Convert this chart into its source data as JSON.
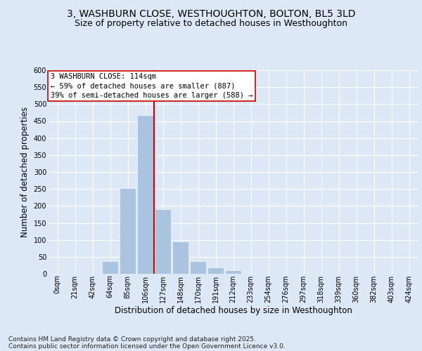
{
  "title_line1": "3, WASHBURN CLOSE, WESTHOUGHTON, BOLTON, BL5 3LD",
  "title_line2": "Size of property relative to detached houses in Westhoughton",
  "xlabel": "Distribution of detached houses by size in Westhoughton",
  "ylabel": "Number of detached properties",
  "bin_labels": [
    "0sqm",
    "21sqm",
    "42sqm",
    "64sqm",
    "85sqm",
    "106sqm",
    "127sqm",
    "148sqm",
    "170sqm",
    "191sqm",
    "212sqm",
    "233sqm",
    "254sqm",
    "276sqm",
    "297sqm",
    "318sqm",
    "339sqm",
    "360sqm",
    "382sqm",
    "403sqm",
    "424sqm"
  ],
  "bar_values": [
    2,
    0,
    0,
    37,
    253,
    467,
    190,
    95,
    37,
    18,
    10,
    3,
    0,
    0,
    0,
    0,
    0,
    0,
    0,
    2,
    0
  ],
  "bar_color": "#aac4e0",
  "bar_edgecolor": "white",
  "vline_color": "#cc0000",
  "annotation_title": "3 WASHBURN CLOSE: 114sqm",
  "annotation_line1": "← 59% of detached houses are smaller (887)",
  "annotation_line2": "39% of semi-detached houses are larger (588) →",
  "annotation_box_color": "#cc0000",
  "ylim": [
    0,
    600
  ],
  "yticks": [
    0,
    50,
    100,
    150,
    200,
    250,
    300,
    350,
    400,
    450,
    500,
    550,
    600
  ],
  "background_color": "#dce8f5",
  "plot_background": "#dce8f5",
  "footer_line1": "Contains HM Land Registry data © Crown copyright and database right 2025.",
  "footer_line2": "Contains public sector information licensed under the Open Government Licence v3.0.",
  "title_fontsize": 10,
  "subtitle_fontsize": 9,
  "axis_label_fontsize": 8.5,
  "tick_fontsize": 7,
  "annotation_fontsize": 7.5,
  "footer_fontsize": 6.5
}
